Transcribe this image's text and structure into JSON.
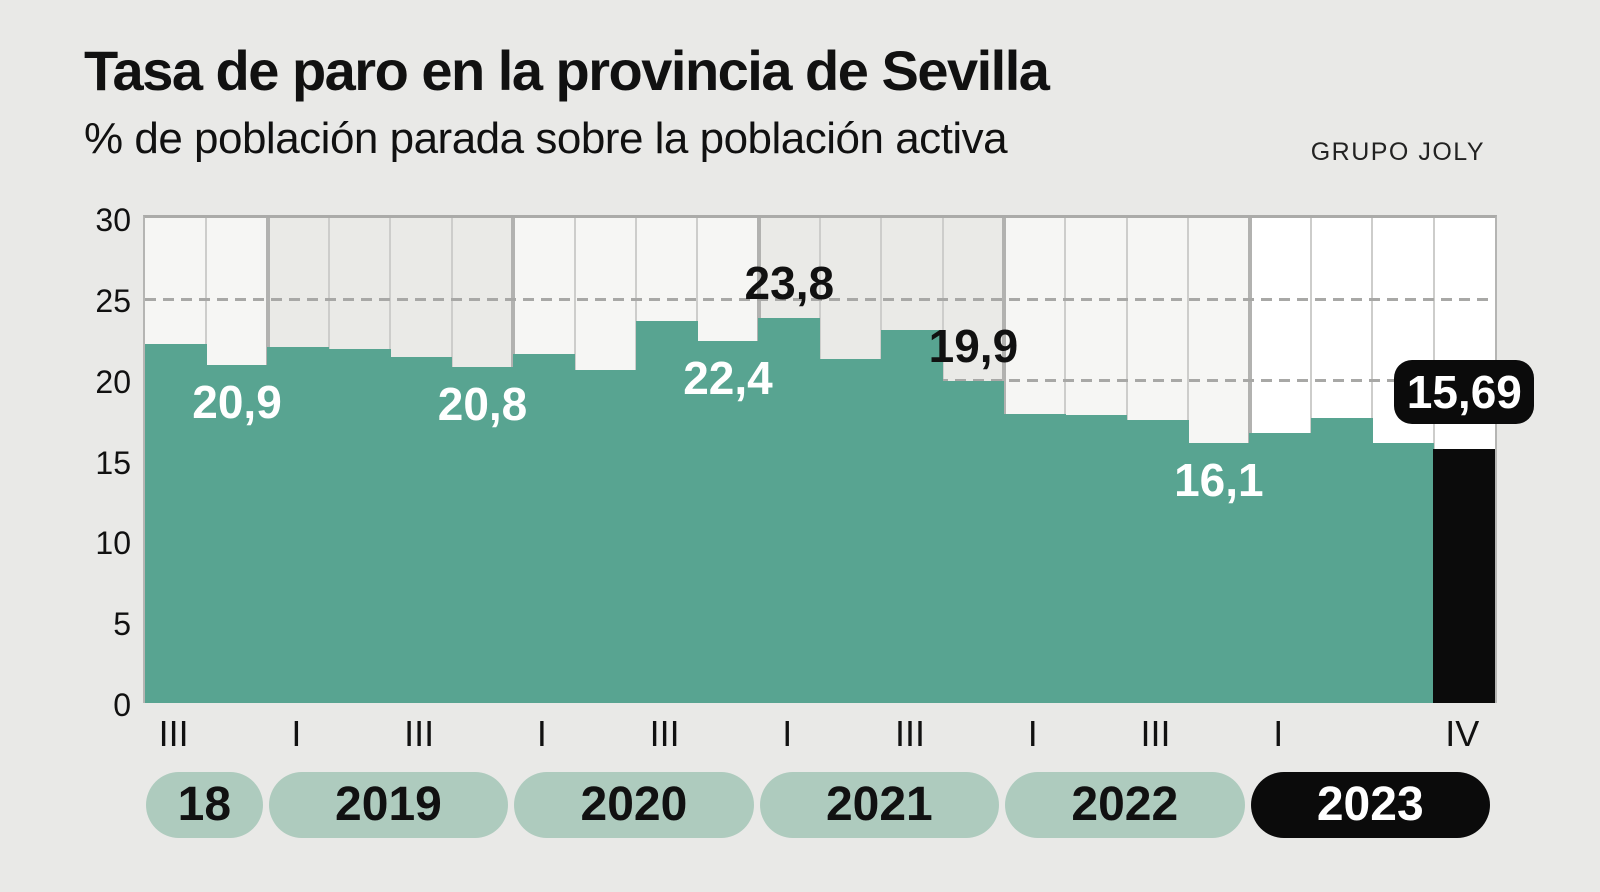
{
  "header": {
    "title": "Tasa de paro en la provincia de Sevilla",
    "subtitle": "% de población parada sobre la población activa",
    "source": "GRUPO JOLY"
  },
  "chart_data": {
    "type": "bar",
    "title": "Tasa de paro en la provincia de Sevilla",
    "ylabel": "% de población parada sobre la población activa",
    "unit": "%",
    "ylim": [
      0,
      30
    ],
    "yticks": [
      30,
      25,
      20,
      15,
      10,
      5,
      0
    ],
    "dashed_gridlines": [
      25,
      20,
      15,
      10,
      5
    ],
    "grid": true,
    "legend": false,
    "categories": [
      "III 2018",
      "IV 2018",
      "I 2019",
      "II 2019",
      "III 2019",
      "IV 2019",
      "I 2020",
      "II 2020",
      "III 2020",
      "IV 2020",
      "I 2021",
      "II 2021",
      "III 2021",
      "IV 2021",
      "I 2022",
      "II 2022",
      "III 2022",
      "IV 2022",
      "I 2023",
      "II 2023",
      "III 2023",
      "IV 2023"
    ],
    "values": [
      22.2,
      20.9,
      22.0,
      21.9,
      21.4,
      20.8,
      21.6,
      20.6,
      23.6,
      22.4,
      23.8,
      21.3,
      23.1,
      19.9,
      17.9,
      17.8,
      17.5,
      16.1,
      16.7,
      17.6,
      16.1,
      15.69
    ],
    "highlight_index": 21,
    "data_labels": [
      {
        "index": 1,
        "text": "20,9",
        "style": "on-bar"
      },
      {
        "index": 5,
        "text": "20,8",
        "style": "on-bar"
      },
      {
        "index": 9,
        "text": "22,4",
        "style": "on-bar"
      },
      {
        "index": 10,
        "text": "23,8",
        "style": "above-bar"
      },
      {
        "index": 13,
        "text": "19,9",
        "style": "above-bar"
      },
      {
        "index": 17,
        "text": "16,1",
        "style": "on-bar"
      },
      {
        "index": 21,
        "text": "15,69",
        "style": "pill"
      }
    ],
    "x_tick_labels": [
      {
        "index": 0,
        "label": "III"
      },
      {
        "index": 2,
        "label": "I"
      },
      {
        "index": 4,
        "label": "III"
      },
      {
        "index": 6,
        "label": "I"
      },
      {
        "index": 8,
        "label": "III"
      },
      {
        "index": 10,
        "label": "I"
      },
      {
        "index": 12,
        "label": "III"
      },
      {
        "index": 14,
        "label": "I"
      },
      {
        "index": 16,
        "label": "III"
      },
      {
        "index": 18,
        "label": "I"
      },
      {
        "index": 21,
        "label": "IV"
      }
    ],
    "year_bands": [
      {
        "label": "18",
        "start": 0,
        "count": 2,
        "shade": "light",
        "pill": "default"
      },
      {
        "label": "2019",
        "start": 2,
        "count": 4,
        "shade": "gray",
        "pill": "default"
      },
      {
        "label": "2020",
        "start": 6,
        "count": 4,
        "shade": "light",
        "pill": "default"
      },
      {
        "label": "2021",
        "start": 10,
        "count": 4,
        "shade": "gray",
        "pill": "default"
      },
      {
        "label": "2022",
        "start": 14,
        "count": 4,
        "shade": "light",
        "pill": "default"
      },
      {
        "label": "2023",
        "start": 18,
        "count": 4,
        "shade": "white",
        "pill": "highlight"
      }
    ],
    "colors": {
      "bar": "#58a491",
      "highlight": "#0b0b0b",
      "band_light": "#f6f6f4",
      "band_gray": "#eaeae7",
      "band_white": "#ffffff",
      "label_on_bar": "#ffffff",
      "label_above": "#111111",
      "pill_bg": "#aecbbe",
      "pill_text": "#111111",
      "pill_highlight_bg": "#0b0b0b",
      "pill_highlight_text": "#ffffff"
    }
  }
}
